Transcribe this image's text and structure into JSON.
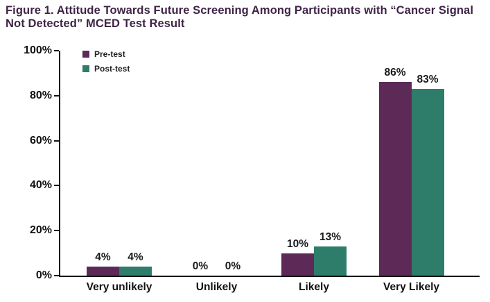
{
  "figure": {
    "title": "Figure 1. Attitude Towards Future Screening Among Participants with “Cancer Signal Not Detected” MCED Test Result"
  },
  "colors": {
    "title_text": "#3f2346",
    "axis": "#111111",
    "pre_test": "#5d2a58",
    "post_test": "#2e7d6a"
  },
  "legend": {
    "items": [
      {
        "label": "Pre-test",
        "color": "#5d2a58"
      },
      {
        "label": "Post-test",
        "color": "#2e7d6a"
      }
    ]
  },
  "chart_data": {
    "type": "bar",
    "title": "Figure 1. Attitude Towards Future Screening Among Participants with “Cancer Signal Not Detected” MCED Test Result",
    "categories": [
      "Very unlikely",
      "Unlikely",
      "Likely",
      "Very Likely"
    ],
    "series": [
      {
        "name": "Pre-test",
        "color": "#5d2a58",
        "values": [
          4,
          0,
          10,
          86
        ]
      },
      {
        "name": "Post-test",
        "color": "#2e7d6a",
        "values": [
          4,
          0,
          13,
          83
        ]
      }
    ],
    "value_suffix": "%",
    "data_labels": [
      "4%",
      "4%",
      "0%",
      "0%",
      "10%",
      "13%",
      "86%",
      "83%"
    ],
    "xlabel": "",
    "ylabel": "",
    "ylim": [
      0,
      100
    ],
    "y_ticks": [
      0,
      20,
      40,
      60,
      80,
      100
    ],
    "y_tick_labels": [
      "0%",
      "20%",
      "40%",
      "60%",
      "80%",
      "100%"
    ],
    "grid": false,
    "legend_position": "top-left"
  }
}
